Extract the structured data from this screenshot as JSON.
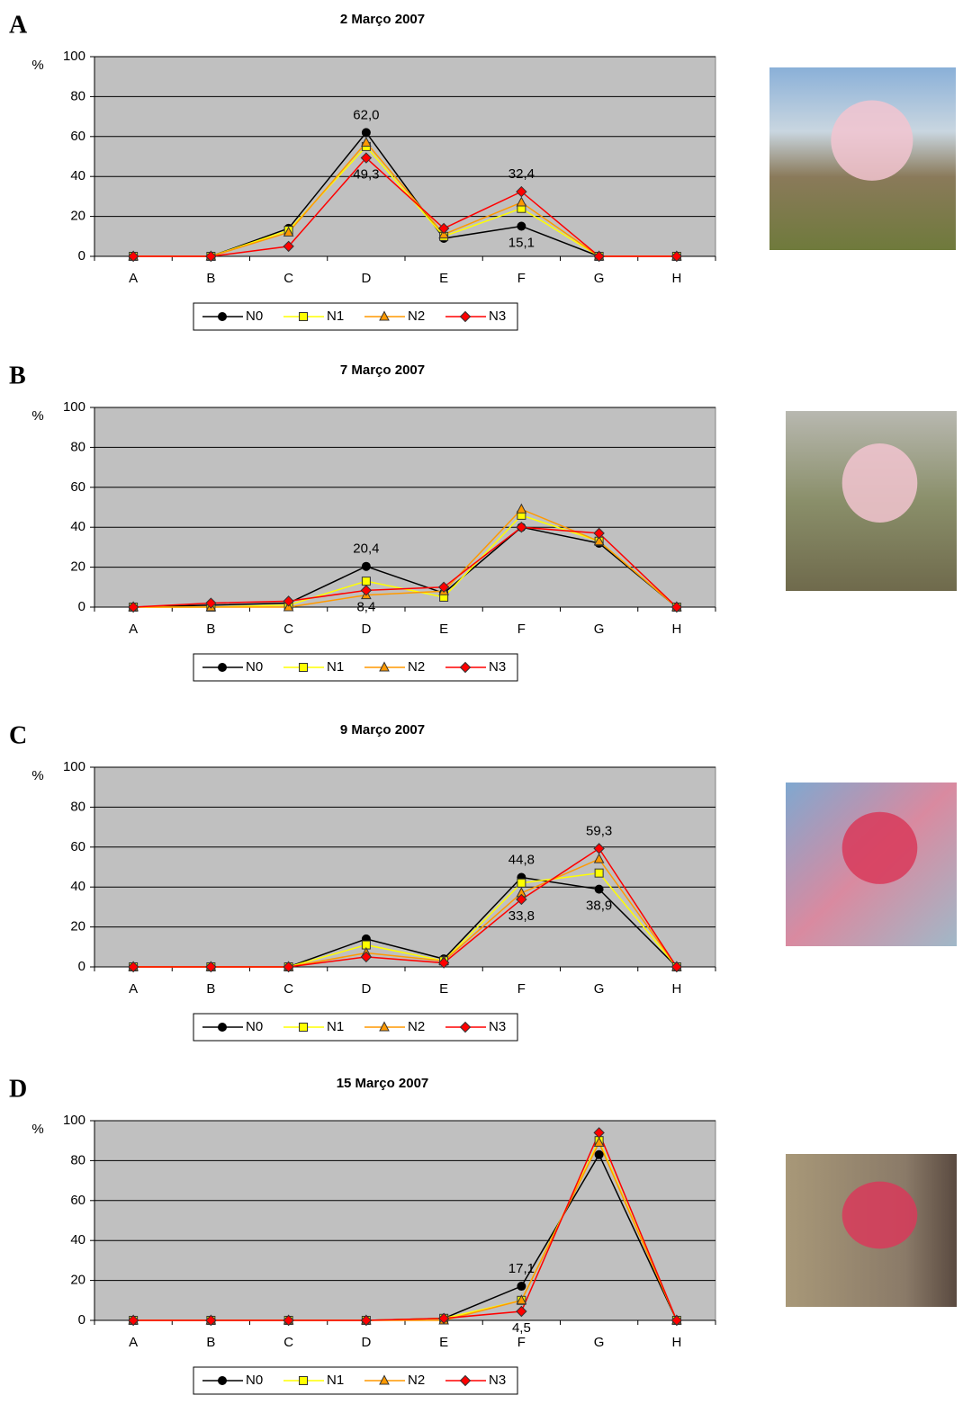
{
  "chart_data": [
    {
      "type": "line",
      "panel": "A",
      "title": "2 Março 2007",
      "y_label": "%",
      "categories": [
        "A",
        "B",
        "C",
        "D",
        "E",
        "F",
        "G",
        "H"
      ],
      "ylim": [
        0,
        100
      ],
      "yticks": [
        0,
        20,
        40,
        60,
        80,
        100
      ],
      "grid": true,
      "legend": "bottom",
      "series": [
        {
          "name": "N0",
          "color": "#000000",
          "marker": "circle",
          "values": [
            0,
            0,
            14,
            62.0,
            9,
            15.1,
            0,
            0
          ],
          "value_labels": [
            null,
            null,
            null,
            "62,0",
            null,
            "15,1",
            null,
            null
          ]
        },
        {
          "name": "N1",
          "color": "#ffff00",
          "marker": "square",
          "values": [
            0,
            0,
            13,
            55,
            10,
            24,
            0,
            0
          ]
        },
        {
          "name": "N2",
          "color": "#ff9900",
          "marker": "triangle",
          "values": [
            0,
            0,
            12,
            57,
            11,
            27,
            0,
            0
          ]
        },
        {
          "name": "N3",
          "color": "#ff0000",
          "marker": "diamond",
          "values": [
            0,
            0,
            5,
            49.3,
            14,
            32.4,
            0,
            0
          ],
          "value_labels": [
            null,
            null,
            null,
            "49,3",
            null,
            "32,4",
            null,
            null
          ]
        }
      ]
    },
    {
      "type": "line",
      "panel": "B",
      "title": "7 Março 2007",
      "y_label": "%",
      "categories": [
        "A",
        "B",
        "C",
        "D",
        "E",
        "F",
        "G",
        "H"
      ],
      "ylim": [
        0,
        100
      ],
      "yticks": [
        0,
        20,
        40,
        60,
        80,
        100
      ],
      "grid": true,
      "legend": "bottom",
      "series": [
        {
          "name": "N0",
          "color": "#000000",
          "marker": "circle",
          "values": [
            0,
            1,
            2,
            20.4,
            7,
            40,
            32,
            0
          ],
          "value_labels": [
            null,
            null,
            null,
            "20,4",
            null,
            null,
            null,
            null
          ]
        },
        {
          "name": "N1",
          "color": "#ffff00",
          "marker": "square",
          "values": [
            0,
            0,
            1,
            13,
            5,
            46,
            33,
            0
          ]
        },
        {
          "name": "N2",
          "color": "#ff9900",
          "marker": "triangle",
          "values": [
            0,
            0,
            0,
            6,
            8,
            49,
            33,
            0
          ]
        },
        {
          "name": "N3",
          "color": "#ff0000",
          "marker": "diamond",
          "values": [
            0,
            2,
            3,
            8.4,
            10,
            40,
            37,
            0
          ],
          "value_labels": [
            null,
            null,
            null,
            "8,4",
            null,
            null,
            null,
            null
          ]
        }
      ]
    },
    {
      "type": "line",
      "panel": "C",
      "title": "9 Março 2007",
      "y_label": "%",
      "categories": [
        "A",
        "B",
        "C",
        "D",
        "E",
        "F",
        "G",
        "H"
      ],
      "ylim": [
        0,
        100
      ],
      "yticks": [
        0,
        20,
        40,
        60,
        80,
        100
      ],
      "grid": true,
      "legend": "bottom",
      "series": [
        {
          "name": "N0",
          "color": "#000000",
          "marker": "circle",
          "values": [
            0,
            0,
            0,
            14,
            4,
            44.8,
            38.9,
            0
          ],
          "value_labels": [
            null,
            null,
            null,
            null,
            null,
            "44,8",
            "38,9",
            null
          ]
        },
        {
          "name": "N1",
          "color": "#ffff00",
          "marker": "square",
          "values": [
            0,
            0,
            0,
            11,
            3,
            42,
            47,
            0
          ]
        },
        {
          "name": "N2",
          "color": "#ff9900",
          "marker": "triangle",
          "values": [
            0,
            0,
            0,
            7,
            3,
            37,
            54,
            0
          ]
        },
        {
          "name": "N3",
          "color": "#ff0000",
          "marker": "diamond",
          "values": [
            0,
            0,
            0,
            5,
            2,
            33.8,
            59.3,
            0
          ],
          "value_labels": [
            null,
            null,
            null,
            null,
            null,
            "33,8",
            "59,3",
            null
          ]
        }
      ]
    },
    {
      "type": "line",
      "panel": "D",
      "title": "15 Março 2007",
      "y_label": "%",
      "categories": [
        "A",
        "B",
        "C",
        "D",
        "E",
        "F",
        "G",
        "H"
      ],
      "ylim": [
        0,
        100
      ],
      "yticks": [
        0,
        20,
        40,
        60,
        80,
        100
      ],
      "grid": true,
      "legend": "bottom",
      "series": [
        {
          "name": "N0",
          "color": "#000000",
          "marker": "circle",
          "values": [
            0,
            0,
            0,
            0,
            1,
            17.1,
            83,
            0
          ],
          "value_labels": [
            null,
            null,
            null,
            null,
            null,
            "17,1",
            null,
            null
          ]
        },
        {
          "name": "N1",
          "color": "#ffff00",
          "marker": "square",
          "values": [
            0,
            0,
            0,
            0,
            1,
            10,
            90,
            0
          ]
        },
        {
          "name": "N2",
          "color": "#ff9900",
          "marker": "triangle",
          "values": [
            0,
            0,
            0,
            0,
            0,
            10,
            89,
            0
          ]
        },
        {
          "name": "N3",
          "color": "#ff0000",
          "marker": "diamond",
          "values": [
            0,
            0,
            0,
            0,
            1,
            4.5,
            94,
            0
          ],
          "value_labels": [
            null,
            null,
            null,
            null,
            null,
            "4,5",
            null,
            null
          ]
        }
      ]
    }
  ]
}
